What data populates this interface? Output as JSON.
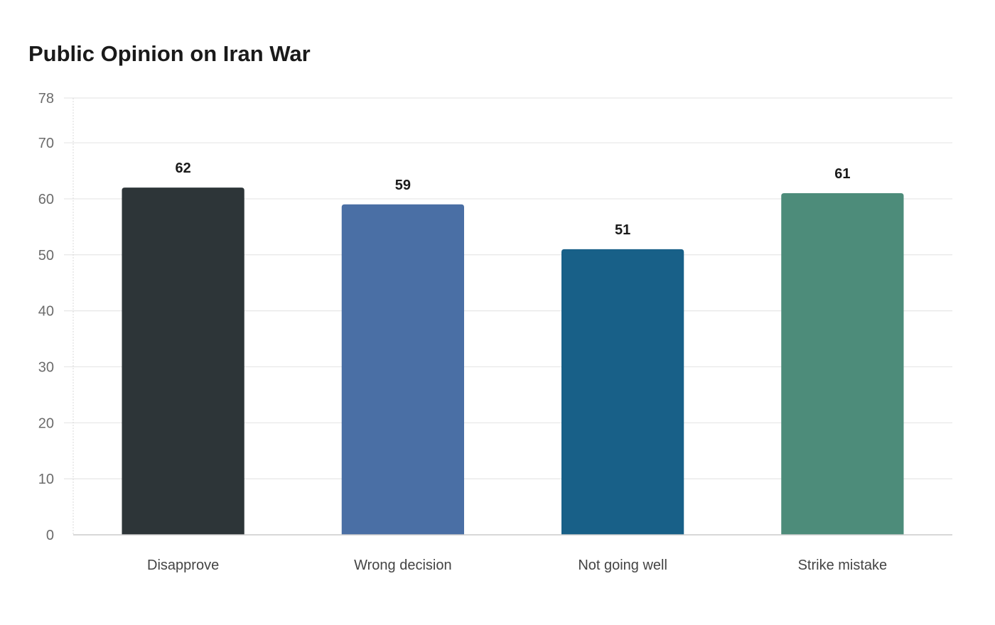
{
  "chart_data": {
    "type": "bar",
    "title": "Public Opinion on Iran War",
    "xlabel": "",
    "ylabel": "",
    "categories": [
      "Disapprove",
      "Wrong decision",
      "Not going well",
      "Strike mistake"
    ],
    "values": [
      62,
      59,
      51,
      61
    ],
    "colors": [
      "#2d3538",
      "#4a6fa5",
      "#186088",
      "#4d8c7a"
    ],
    "ylim": [
      0,
      78
    ],
    "yticks": [
      0,
      10,
      20,
      30,
      40,
      50,
      60,
      70,
      78
    ],
    "grid": true,
    "data_labels": true,
    "legend": "none"
  }
}
